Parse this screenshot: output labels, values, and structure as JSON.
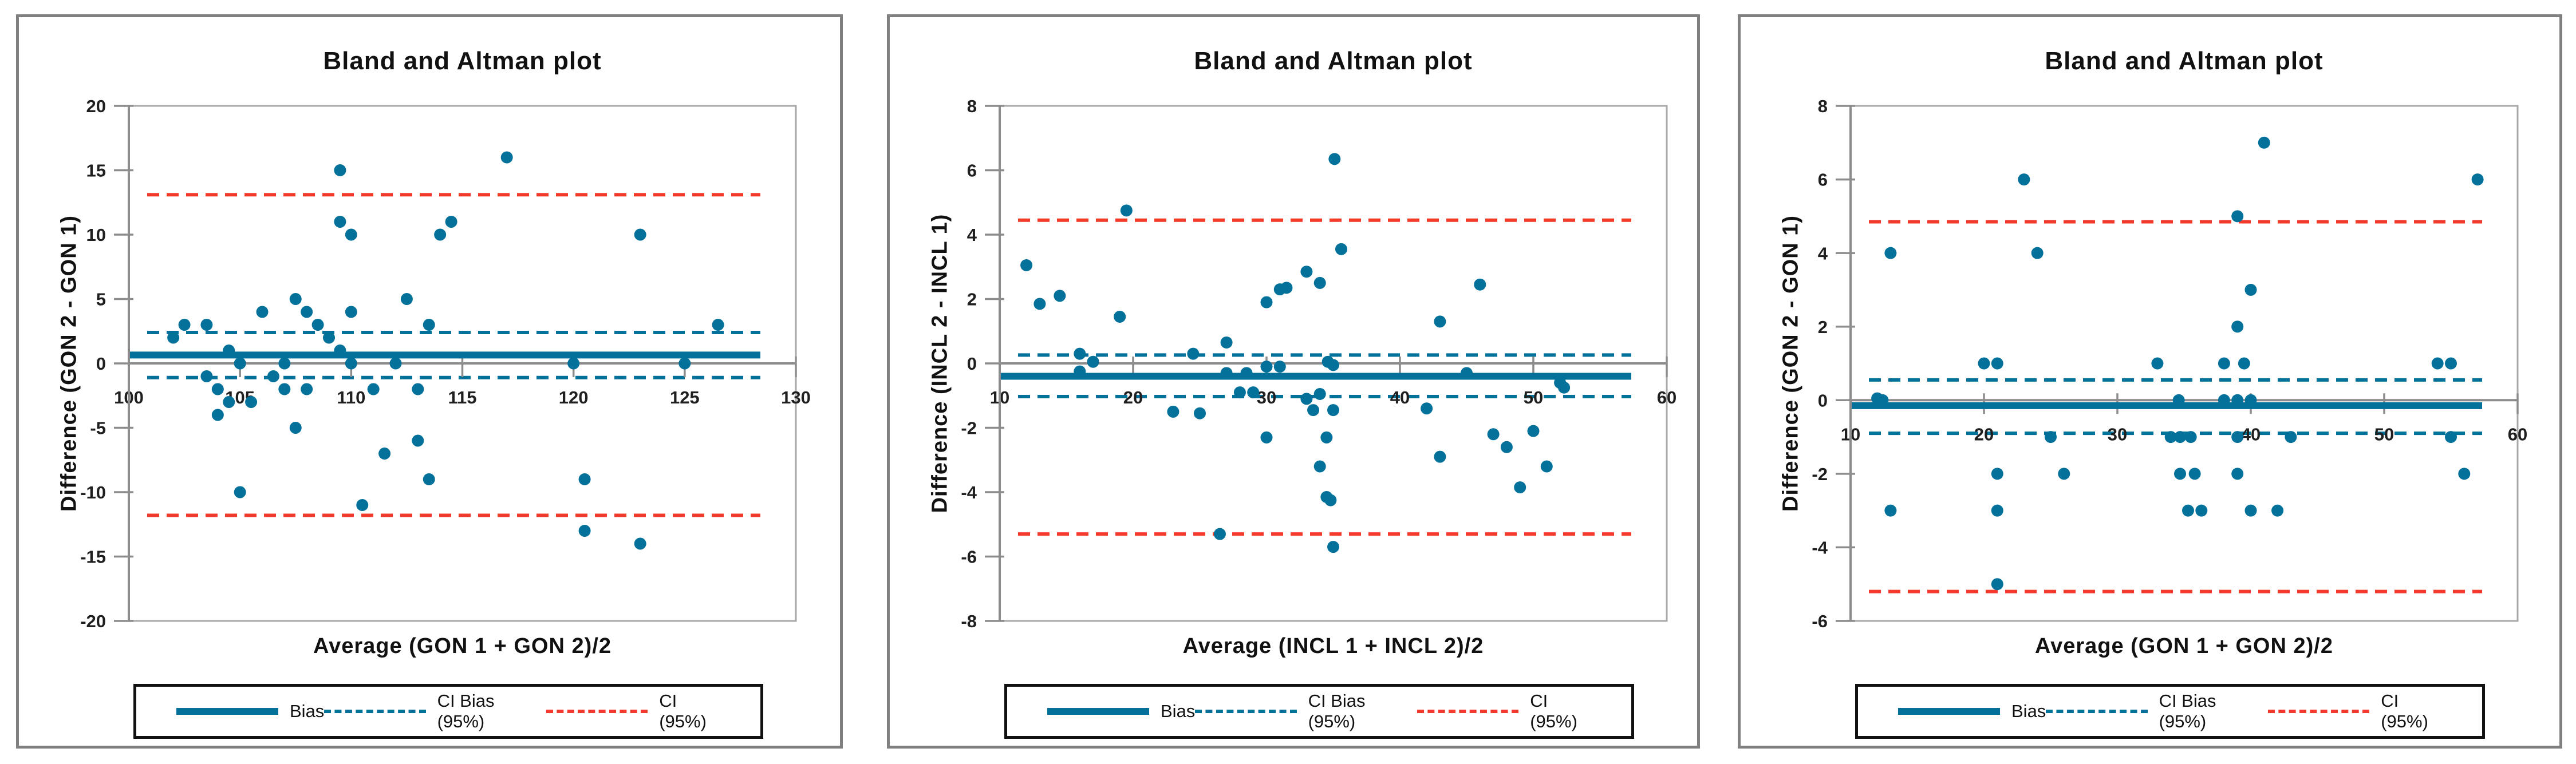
{
  "window": {
    "background": "#ffffff"
  },
  "colors": {
    "series_teal": "#03719a",
    "ci_red": "#f23b2d",
    "axis_gray": "#8c8c8c",
    "plot_border_gray": "#a8a8a8",
    "panel_border_gray": "#808080",
    "text_dark": "#111111"
  },
  "legend": {
    "bias": "Bias",
    "ci_bias": "CI Bias (95%)",
    "ci": "CI (95%)"
  },
  "chart_data": [
    {
      "type": "scatter",
      "title": "Bland and Altman plot",
      "xlabel": "Average (GON 1 + GON 2)/2",
      "ylabel": "Difference (GON 2 - GON 1)",
      "xlim": [
        100,
        130
      ],
      "ylim": [
        -20,
        20
      ],
      "xticks": [
        100,
        105,
        110,
        115,
        120,
        125,
        130
      ],
      "yticks": [
        -20,
        -15,
        -10,
        -5,
        0,
        5,
        10,
        15,
        20
      ],
      "grid": false,
      "legend_position": "bottom",
      "lines": {
        "bias": 0.65,
        "ci_bias_upper": 2.4,
        "ci_bias_lower": -1.1,
        "ci_upper": 13.1,
        "ci_lower": -11.8
      },
      "points": [
        [
          102,
          2
        ],
        [
          102.5,
          3
        ],
        [
          103.5,
          3
        ],
        [
          103.5,
          -1
        ],
        [
          104,
          -2
        ],
        [
          104,
          -4
        ],
        [
          104.5,
          1
        ],
        [
          104.5,
          -3
        ],
        [
          105,
          0
        ],
        [
          105,
          -10
        ],
        [
          105.5,
          -3
        ],
        [
          106,
          4
        ],
        [
          106.5,
          -1
        ],
        [
          107,
          0
        ],
        [
          107,
          -2
        ],
        [
          107.5,
          5
        ],
        [
          107.5,
          -5
        ],
        [
          108,
          4
        ],
        [
          108,
          -2
        ],
        [
          108.5,
          3
        ],
        [
          109,
          2
        ],
        [
          109.5,
          15
        ],
        [
          109.5,
          11
        ],
        [
          109.5,
          1
        ],
        [
          110,
          10
        ],
        [
          110,
          4
        ],
        [
          110,
          0
        ],
        [
          110.5,
          -11
        ],
        [
          111,
          -2
        ],
        [
          111.5,
          -7
        ],
        [
          112,
          0
        ],
        [
          112.5,
          5
        ],
        [
          113,
          -2
        ],
        [
          113,
          -6
        ],
        [
          113.5,
          3
        ],
        [
          113.5,
          -9
        ],
        [
          114,
          10
        ],
        [
          114.5,
          11
        ],
        [
          117,
          16
        ],
        [
          120,
          0
        ],
        [
          120.5,
          -9
        ],
        [
          120.5,
          -13
        ],
        [
          123,
          10
        ],
        [
          123,
          -14
        ],
        [
          125,
          0
        ],
        [
          126.5,
          3
        ]
      ]
    },
    {
      "type": "scatter",
      "title": "Bland and Altman plot",
      "xlabel": "Average (INCL 1 + INCL 2)/2",
      "ylabel": "Difference (INCL 2 - INCL 1)",
      "xlim": [
        10,
        60
      ],
      "ylim": [
        -8,
        8
      ],
      "xticks": [
        10,
        20,
        30,
        40,
        50,
        60
      ],
      "yticks": [
        -8,
        -6,
        -4,
        -2,
        0,
        2,
        4,
        6,
        8
      ],
      "grid": false,
      "legend_position": "bottom",
      "lines": {
        "bias": -0.4,
        "ci_bias_upper": 0.26,
        "ci_bias_lower": -1.03,
        "ci_upper": 4.45,
        "ci_lower": -5.3
      },
      "points": [
        [
          12,
          3.05
        ],
        [
          13,
          1.85
        ],
        [
          14.5,
          2.1
        ],
        [
          16,
          0.3
        ],
        [
          16,
          -0.25
        ],
        [
          17,
          0.05
        ],
        [
          19,
          1.45
        ],
        [
          19.5,
          4.75
        ],
        [
          23,
          -1.5
        ],
        [
          24.5,
          0.3
        ],
        [
          25,
          -1.55
        ],
        [
          26.5,
          -5.3
        ],
        [
          27,
          0.65
        ],
        [
          27,
          -0.3
        ],
        [
          28.5,
          -0.3
        ],
        [
          28,
          -0.9
        ],
        [
          29,
          -0.9
        ],
        [
          30,
          1.9
        ],
        [
          30,
          -0.1
        ],
        [
          30,
          -2.3
        ],
        [
          31,
          2.3
        ],
        [
          31.5,
          2.35
        ],
        [
          31,
          -0.1
        ],
        [
          33,
          2.85
        ],
        [
          33,
          -1.1
        ],
        [
          33.5,
          -1.45
        ],
        [
          34,
          2.5
        ],
        [
          34,
          -0.95
        ],
        [
          34,
          -3.2
        ],
        [
          34.5,
          -2.3
        ],
        [
          34.6,
          0.05
        ],
        [
          35,
          -0.05
        ],
        [
          34.5,
          -4.15
        ],
        [
          34.8,
          -4.25
        ],
        [
          35,
          -1.45
        ],
        [
          35,
          -5.7
        ],
        [
          35.1,
          6.35
        ],
        [
          35.6,
          3.55
        ],
        [
          42,
          -1.4
        ],
        [
          43,
          1.3
        ],
        [
          43,
          -2.9
        ],
        [
          45,
          -0.3
        ],
        [
          46,
          2.45
        ],
        [
          47,
          -2.2
        ],
        [
          48,
          -2.6
        ],
        [
          49,
          -3.85
        ],
        [
          50,
          -2.1
        ],
        [
          51,
          -3.2
        ],
        [
          52,
          -0.6
        ],
        [
          52.3,
          -0.75
        ]
      ]
    },
    {
      "type": "scatter",
      "title": "Bland and Altman plot",
      "xlabel": "Average (GON 1 + GON 2)/2",
      "ylabel": "Difference (GON 2 - GON 1)",
      "xlim": [
        10,
        60
      ],
      "ylim": [
        -6,
        8
      ],
      "xticks": [
        10,
        20,
        30,
        40,
        50,
        60
      ],
      "yticks": [
        -6,
        -4,
        -2,
        0,
        2,
        4,
        6,
        8
      ],
      "grid": false,
      "legend_position": "bottom",
      "lines": {
        "bias": -0.15,
        "ci_bias_upper": 0.55,
        "ci_bias_lower": -0.9,
        "ci_upper": 4.85,
        "ci_lower": -5.2
      },
      "points": [
        [
          12,
          0.05
        ],
        [
          12.4,
          0
        ],
        [
          13,
          4
        ],
        [
          13,
          -3
        ],
        [
          20,
          1
        ],
        [
          21,
          1
        ],
        [
          21,
          -2
        ],
        [
          21,
          -3
        ],
        [
          21,
          -5
        ],
        [
          23,
          6
        ],
        [
          24,
          4
        ],
        [
          25,
          -1
        ],
        [
          26,
          -2
        ],
        [
          33,
          1
        ],
        [
          34,
          -1
        ],
        [
          34.6,
          0
        ],
        [
          34.7,
          -1
        ],
        [
          34.7,
          -2
        ],
        [
          35.3,
          -3
        ],
        [
          35.5,
          -1
        ],
        [
          35.8,
          -2
        ],
        [
          36.3,
          -3
        ],
        [
          38,
          0
        ],
        [
          38,
          1
        ],
        [
          39,
          0
        ],
        [
          39,
          2
        ],
        [
          39,
          5
        ],
        [
          39,
          -1
        ],
        [
          39,
          -2
        ],
        [
          39.5,
          1
        ],
        [
          40,
          0
        ],
        [
          40,
          3
        ],
        [
          40,
          -3
        ],
        [
          41,
          7
        ],
        [
          42,
          -3
        ],
        [
          43,
          -1
        ],
        [
          54,
          1
        ],
        [
          55,
          1
        ],
        [
          55,
          -1
        ],
        [
          56,
          -2
        ],
        [
          57,
          6
        ]
      ]
    }
  ]
}
